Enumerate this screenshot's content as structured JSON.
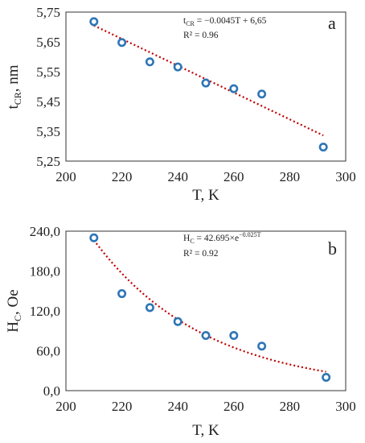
{
  "chart_data": [
    {
      "type": "scatter",
      "panel_label": "a",
      "xlabel": "T, K",
      "ylabel_main": "t",
      "ylabel_sub": "CR",
      "ylabel_unit": ", nm",
      "xlim": [
        200,
        300
      ],
      "ylim": [
        5.25,
        5.75
      ],
      "xticks": [
        "200",
        "220",
        "240",
        "260",
        "280",
        "300"
      ],
      "yticks": [
        "5,75",
        "5,65",
        "5,55",
        "5,45",
        "5,35",
        "5,25"
      ],
      "ytick_values": [
        5.75,
        5.65,
        5.55,
        5.45,
        5.35,
        5.25
      ],
      "x": [
        210,
        220,
        230,
        240,
        250,
        260,
        270,
        292
      ],
      "y": [
        5.718,
        5.648,
        5.583,
        5.566,
        5.512,
        5.493,
        5.475,
        5.297
      ],
      "fit": {
        "kind": "linear",
        "slope": -0.0045,
        "intercept": 6.65,
        "x_from": 210,
        "x_to": 292
      },
      "equation_lhs": "t",
      "equation_lhs_sub": "CR",
      "equation_rhs": " = −0.0045T + 6,65",
      "r2_text": "R² = 0.96",
      "colors": {
        "marker": "#2e75b6",
        "fit": "#c00000"
      }
    },
    {
      "type": "scatter",
      "panel_label": "b",
      "xlabel": "T, K",
      "ylabel_main": "H",
      "ylabel_sub": "C",
      "ylabel_unit": ", Oe",
      "xlim": [
        200,
        300
      ],
      "ylim": [
        0,
        240
      ],
      "xticks": [
        "200",
        "220",
        "240",
        "260",
        "280",
        "300"
      ],
      "yticks": [
        "240,0",
        "180,0",
        "120,0",
        "60,0",
        "0,0"
      ],
      "ytick_values": [
        240,
        180,
        120,
        60,
        0
      ],
      "x": [
        210,
        220,
        230,
        240,
        250,
        260,
        270,
        293
      ],
      "y": [
        230,
        146,
        125,
        104,
        83,
        83,
        67,
        20
      ],
      "fit": {
        "kind": "exponential",
        "a": 42.695,
        "b": -0.025,
        "x_from": 210,
        "x_to": 293
      },
      "equation_lhs": "H",
      "equation_lhs_sub": "C",
      "equation_rhs": " = 42.695×e",
      "equation_exp": "−0.025T",
      "r2_text": "R² = 0.92",
      "colors": {
        "marker": "#2e75b6",
        "fit": "#c00000"
      }
    }
  ]
}
